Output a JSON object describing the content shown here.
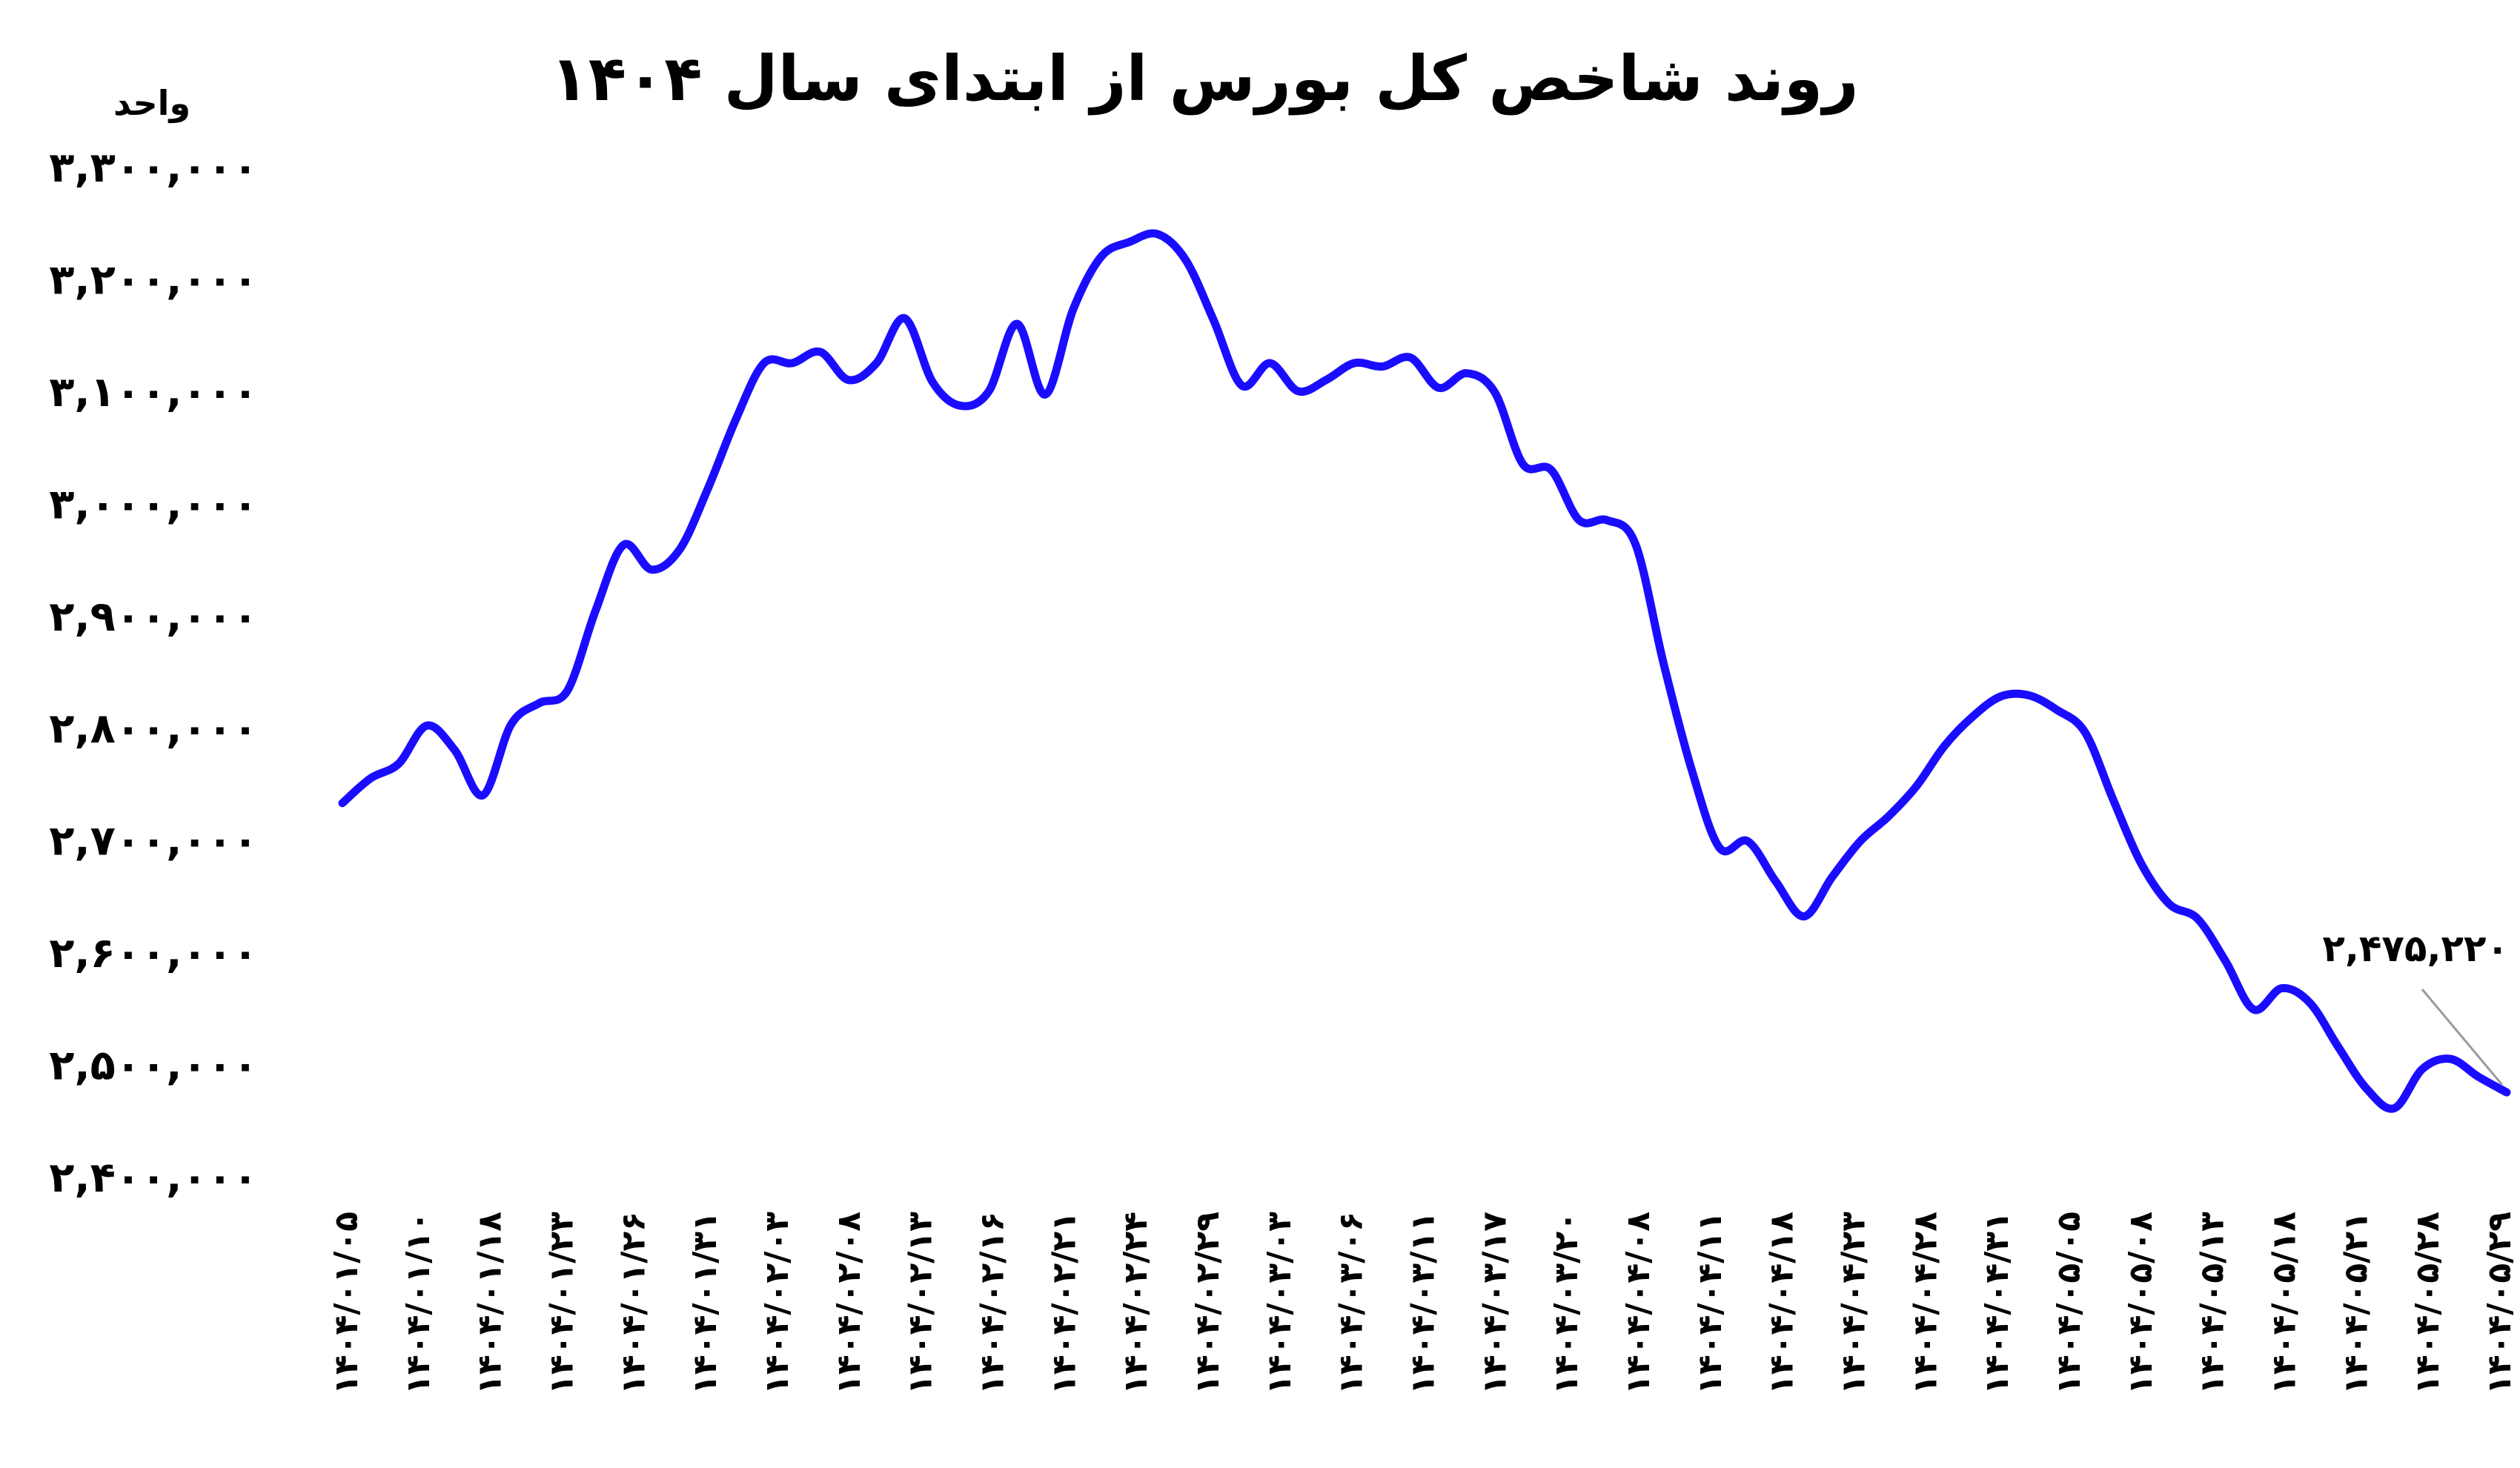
{
  "chart_data": {
    "type": "line",
    "title": "روند شاخص کل بورس از ابتدای سال ۱۴۰۴",
    "ylabel": "واحد",
    "xlabel": "",
    "ylim": [
      2400000,
      3300000
    ],
    "grid": false,
    "legend": "none",
    "y_ticks": [
      3300000,
      3200000,
      3100000,
      3000000,
      2900000,
      2800000,
      2700000,
      2600000,
      2500000,
      2400000
    ],
    "y_tick_labels": [
      "۳,۳۰۰,۰۰۰",
      "۳,۲۰۰,۰۰۰",
      "۳,۱۰۰,۰۰۰",
      "۳,۰۰۰,۰۰۰",
      "۲,۹۰۰,۰۰۰",
      "۲,۸۰۰,۰۰۰",
      "۲,۷۰۰,۰۰۰",
      "۲,۶۰۰,۰۰۰",
      "۲,۵۰۰,۰۰۰",
      "۲,۴۰۰,۰۰۰"
    ],
    "x_tick_labels": [
      "۱۴۰۴/۰۱/۰۵",
      "۱۴۰۴/۰۱/۱۰",
      "۱۴۰۴/۰۱/۱۸",
      "۱۴۰۴/۰۱/۲۳",
      "۱۴۰۴/۰۱/۲۶",
      "۱۴۰۴/۰۱/۳۱",
      "۱۴۰۴/۰۲/۰۳",
      "۱۴۰۴/۰۲/۰۸",
      "۱۴۰۴/۰۲/۱۳",
      "۱۴۰۴/۰۲/۱۶",
      "۱۴۰۴/۰۲/۲۱",
      "۱۴۰۴/۰۲/۲۴",
      "۱۴۰۴/۰۲/۲۹",
      "۱۴۰۴/۰۳/۰۳",
      "۱۴۰۴/۰۳/۰۶",
      "۱۴۰۴/۰۳/۱۱",
      "۱۴۰۴/۰۳/۱۷",
      "۱۴۰۴/۰۳/۲۰",
      "۱۴۰۴/۰۴/۰۸",
      "۱۴۰۴/۰۴/۱۱",
      "۱۴۰۴/۰۴/۱۸",
      "۱۴۰۴/۰۴/۲۳",
      "۱۴۰۴/۰۴/۲۸",
      "۱۴۰۴/۰۴/۳۱",
      "۱۴۰۴/۰۵/۰۵",
      "۱۴۰۴/۰۵/۰۸",
      "۱۴۰۴/۰۵/۱۳",
      "۱۴۰۴/۰۵/۱۸",
      "۱۴۰۴/۰۵/۲۱",
      "۱۴۰۴/۰۵/۲۸",
      "۱۴۰۴/۰۵/۲۹"
    ],
    "series": [
      {
        "color": "#1a0dff",
        "values": [
          2733000,
          2755000,
          2768000,
          2802000,
          2780000,
          2740000,
          2803000,
          2822000,
          2833000,
          2904000,
          2963000,
          2941000,
          2959000,
          3013000,
          3075000,
          3125000,
          3125000,
          3135000,
          3110000,
          3125000,
          3165000,
          3108000,
          3087000,
          3100000,
          3160000,
          3097000,
          3173000,
          3220000,
          3233000,
          3240000,
          3217000,
          3163000,
          3105000,
          3125000,
          3100000,
          3110000,
          3125000,
          3122000,
          3130000,
          3103000,
          3116000,
          3099000,
          3035000,
          3030000,
          2985000,
          2985000,
          2964000,
          2858000,
          2763000,
          2693000,
          2699000,
          2663000,
          2632000,
          2667000,
          2699000,
          2721000,
          2748000,
          2784000,
          2810000,
          2828000,
          2829000,
          2816000,
          2796000,
          2736000,
          2679000,
          2643000,
          2630000,
          2592000,
          2549000,
          2568000,
          2555000,
          2516000,
          2479000,
          2461000,
          2496000,
          2505000,
          2489000,
          2475220
        ]
      }
    ],
    "annotations": [
      {
        "text": "۲,۴۷۵,۲۲۰",
        "value": 2475220
      }
    ]
  }
}
